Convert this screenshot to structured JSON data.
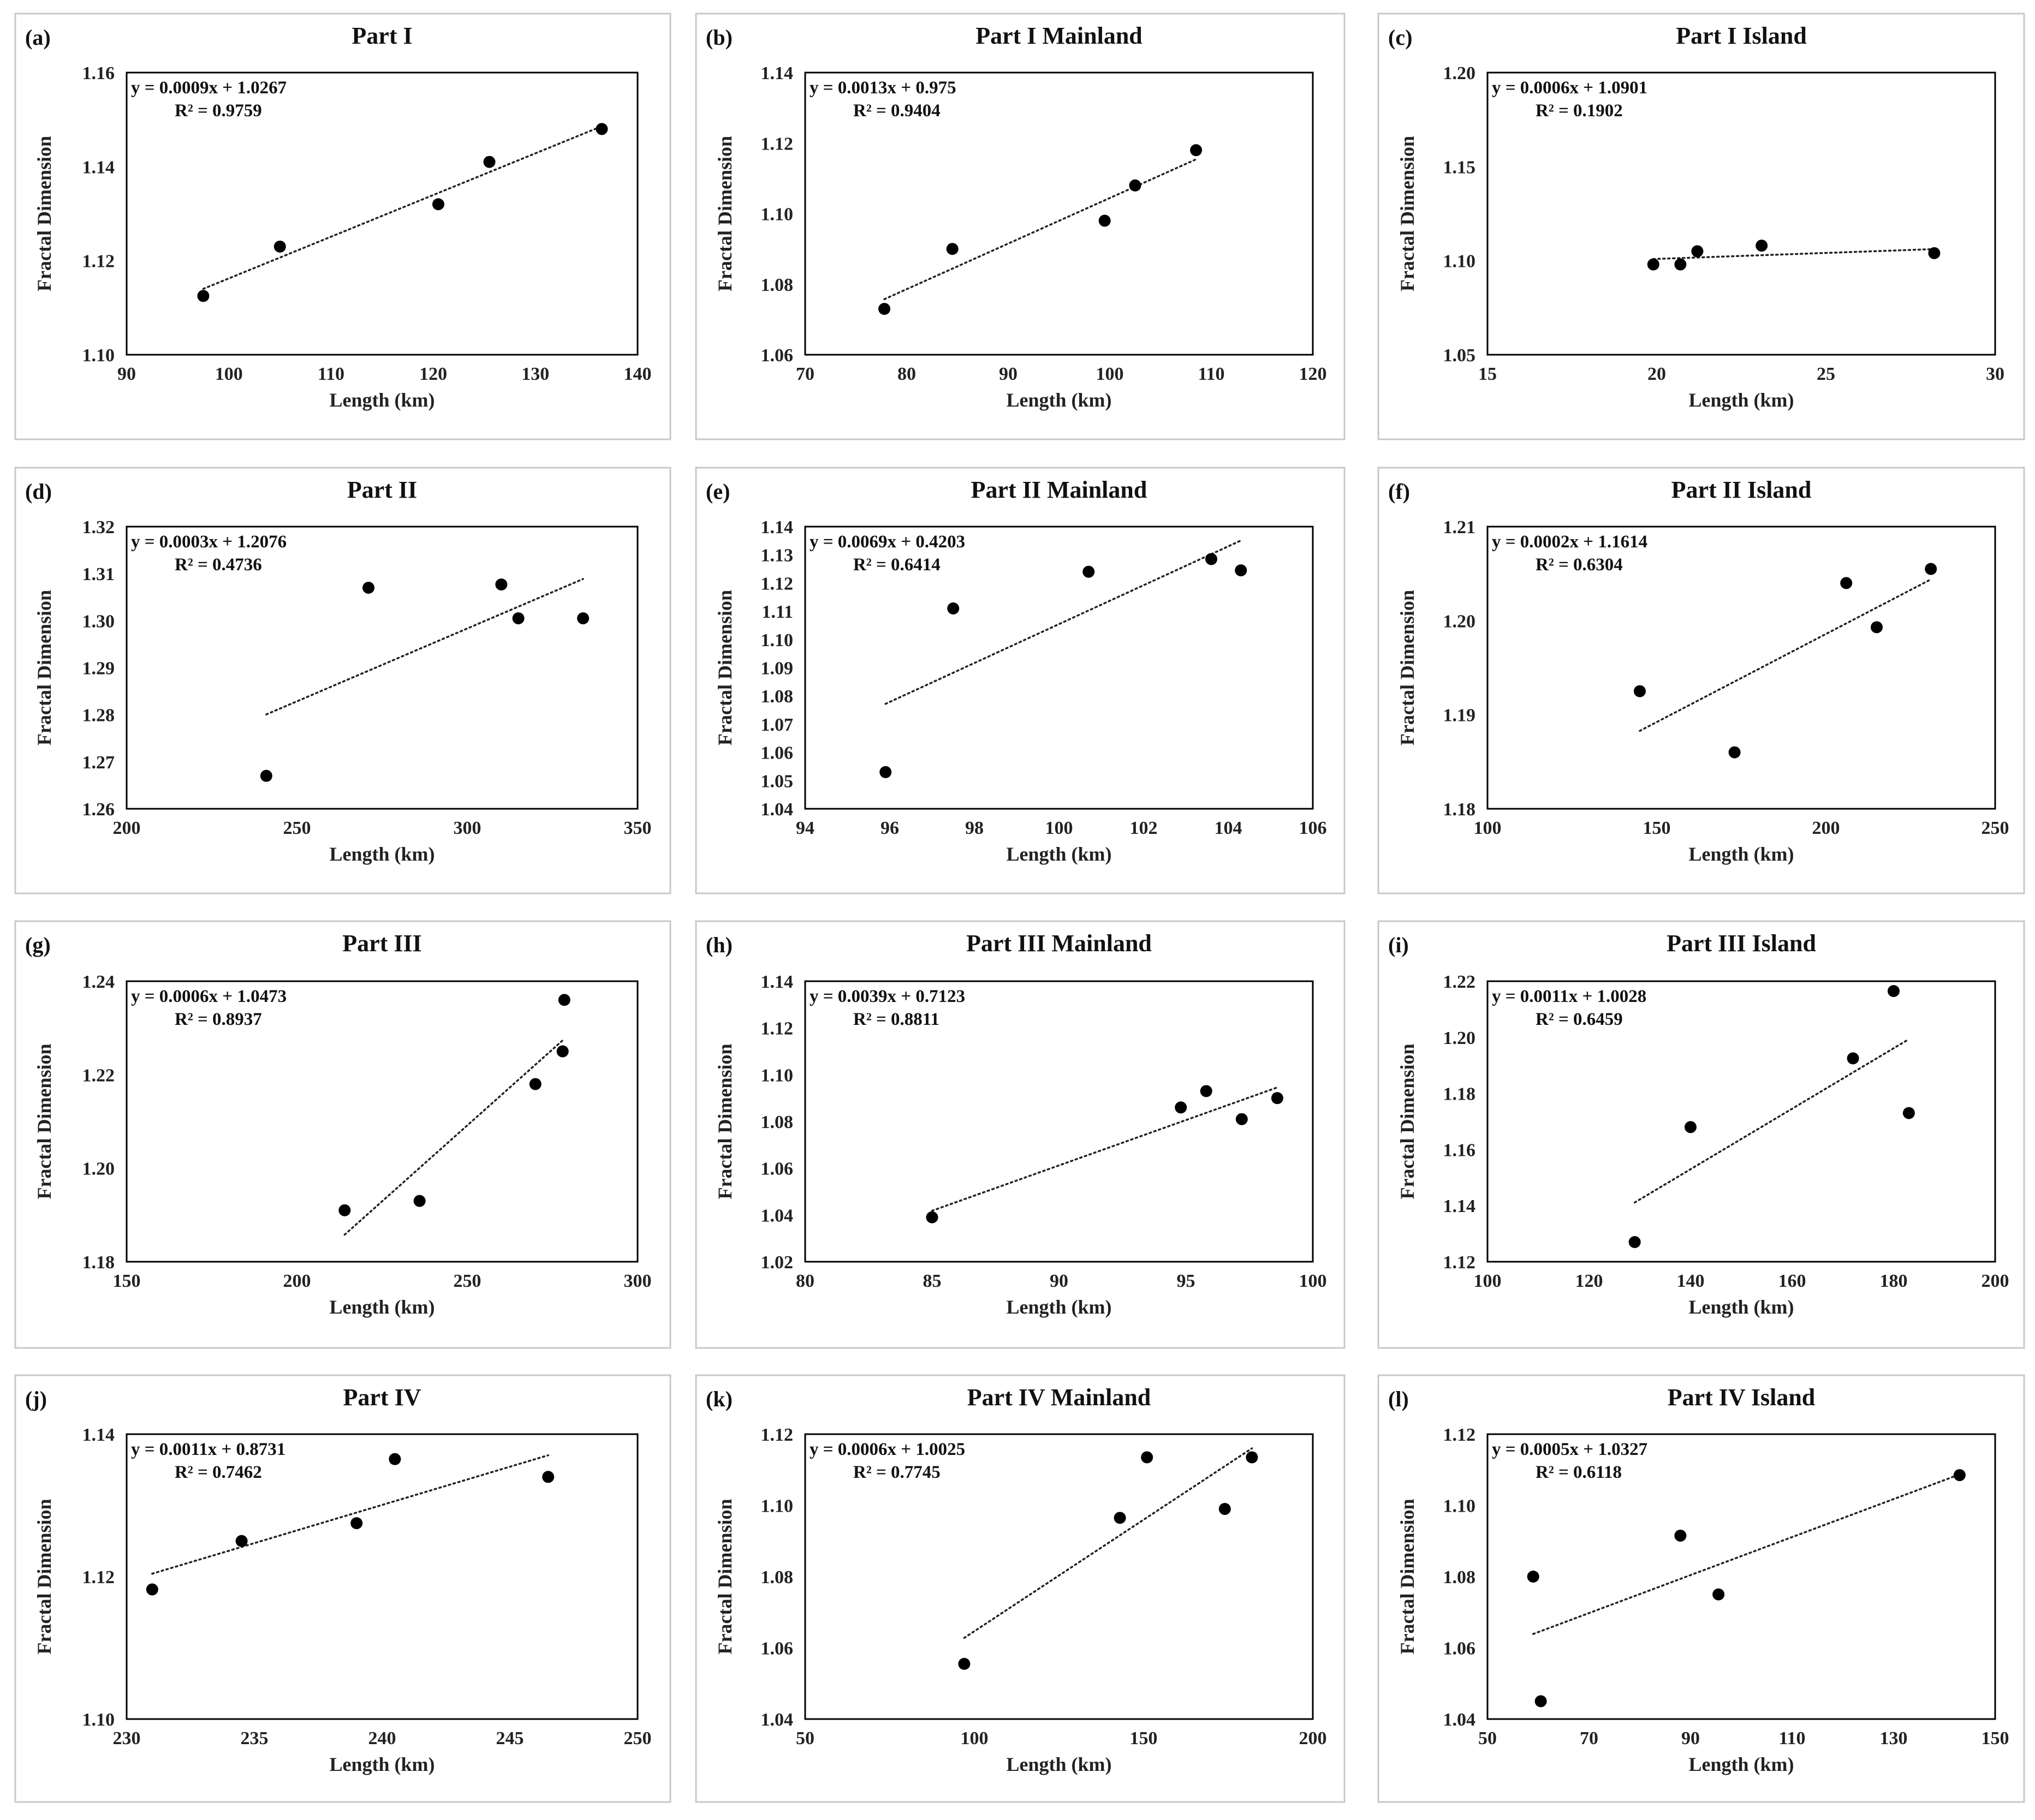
{
  "figure": {
    "background": "#ffffff",
    "point_color": "#000000",
    "panel_border_color": "#c8c8c8"
  },
  "chart_data": [
    {
      "type": "scatter",
      "panel": "(a)",
      "title": "Part I",
      "xlabel": "Length (km)",
      "ylabel": "Fractal Dimension",
      "xlim": [
        90,
        140
      ],
      "xticks": [
        90,
        100,
        110,
        120,
        130,
        140
      ],
      "ylim": [
        1.1,
        1.16
      ],
      "yticks": [
        1.1,
        1.12,
        1.14,
        1.16
      ],
      "ydecimals": 2,
      "points": [
        [
          97.5,
          1.1125
        ],
        [
          105,
          1.123
        ],
        [
          120.5,
          1.132
        ],
        [
          125.5,
          1.141
        ],
        [
          136.5,
          1.148
        ]
      ],
      "trend_x": [
        97.5,
        136.5
      ],
      "equation": "y = 0.0009x + 1.0267",
      "r2": "R² = 0.9759"
    },
    {
      "type": "scatter",
      "panel": "(b)",
      "title": "Part I Mainland",
      "xlabel": "Length (km)",
      "ylabel": "Fractal Dimension",
      "xlim": [
        70,
        120
      ],
      "xticks": [
        70,
        80,
        90,
        100,
        110,
        120
      ],
      "ylim": [
        1.06,
        1.14
      ],
      "yticks": [
        1.06,
        1.08,
        1.1,
        1.12,
        1.14
      ],
      "ydecimals": 2,
      "points": [
        [
          77.8,
          1.073
        ],
        [
          84.5,
          1.09
        ],
        [
          99.5,
          1.098
        ],
        [
          102.5,
          1.108
        ],
        [
          108.5,
          1.118
        ]
      ],
      "trend_x": [
        77.8,
        108.5
      ],
      "equation": "y = 0.0013x + 0.975",
      "r2": "R² = 0.9404"
    },
    {
      "type": "scatter",
      "panel": "(c)",
      "title": "Part I Island",
      "xlabel": "Length (km)",
      "ylabel": "Fractal Dimension",
      "xlim": [
        15,
        30
      ],
      "xticks": [
        15,
        20,
        25,
        30
      ],
      "ylim": [
        1.05,
        1.2
      ],
      "yticks": [
        1.05,
        1.1,
        1.15,
        1.2
      ],
      "ydecimals": 2,
      "points": [
        [
          19.9,
          1.098
        ],
        [
          20.7,
          1.098
        ],
        [
          21.2,
          1.105
        ],
        [
          23.1,
          1.108
        ],
        [
          28.2,
          1.104
        ]
      ],
      "trend_x": [
        19.9,
        28.2
      ],
      "equation": "y = 0.0006x + 1.0901",
      "r2": "R² = 0.1902"
    },
    {
      "type": "scatter",
      "panel": "(d)",
      "title": "Part II",
      "xlabel": "Length (km)",
      "ylabel": "Fractal Dimension",
      "xlim": [
        200,
        350
      ],
      "xticks": [
        200,
        250,
        300,
        350
      ],
      "ylim": [
        1.26,
        1.32
      ],
      "yticks": [
        1.26,
        1.27,
        1.28,
        1.29,
        1.3,
        1.31,
        1.32
      ],
      "ydecimals": 2,
      "points": [
        [
          241,
          1.267
        ],
        [
          271,
          1.307
        ],
        [
          310,
          1.3077
        ],
        [
          315,
          1.3005
        ],
        [
          334,
          1.3005
        ]
      ],
      "trend_x": [
        241,
        334
      ],
      "equation": "y = 0.0003x + 1.2076",
      "r2": "R² = 0.4736"
    },
    {
      "type": "scatter",
      "panel": "(e)",
      "title": "Part II Mainland",
      "xlabel": "Length (km)",
      "ylabel": "Fractal Dimension",
      "xlim": [
        94,
        106
      ],
      "xticks": [
        94,
        96,
        98,
        100,
        102,
        104,
        106
      ],
      "ylim": [
        1.04,
        1.14
      ],
      "yticks": [
        1.04,
        1.05,
        1.06,
        1.07,
        1.08,
        1.09,
        1.1,
        1.11,
        1.12,
        1.13,
        1.14
      ],
      "ydecimals": 2,
      "points": [
        [
          95.9,
          1.053
        ],
        [
          97.5,
          1.111
        ],
        [
          100.7,
          1.124
        ],
        [
          103.6,
          1.1285
        ],
        [
          104.3,
          1.1245
        ]
      ],
      "trend_x": [
        95.9,
        104.3
      ],
      "equation": "y = 0.0069x + 0.4203",
      "r2": "R² = 0.6414"
    },
    {
      "type": "scatter",
      "panel": "(f)",
      "title": "Part II Island",
      "xlabel": "Length (km)",
      "ylabel": "Fractal Dimension",
      "xlim": [
        100,
        250
      ],
      "xticks": [
        100,
        150,
        200,
        250
      ],
      "ylim": [
        1.18,
        1.21
      ],
      "yticks": [
        1.18,
        1.19,
        1.2,
        1.21
      ],
      "ydecimals": 2,
      "points": [
        [
          145,
          1.1925
        ],
        [
          173,
          1.186
        ],
        [
          206,
          1.204
        ],
        [
          215,
          1.1993
        ],
        [
          231,
          1.2055
        ]
      ],
      "trend_x": [
        145,
        231
      ],
      "equation": "y = 0.0002x + 1.1614",
      "r2": "R² = 0.6304"
    },
    {
      "type": "scatter",
      "panel": "(g)",
      "title": "Part III",
      "xlabel": "Length (km)",
      "ylabel": "Fractal Dimension",
      "xlim": [
        150,
        300
      ],
      "xticks": [
        150,
        200,
        250,
        300
      ],
      "ylim": [
        1.18,
        1.24
      ],
      "yticks": [
        1.18,
        1.2,
        1.22,
        1.24
      ],
      "ydecimals": 2,
      "points": [
        [
          214,
          1.191
        ],
        [
          236,
          1.193
        ],
        [
          270,
          1.218
        ],
        [
          278,
          1.225
        ],
        [
          278.5,
          1.236
        ]
      ],
      "trend_x": [
        214,
        278.5
      ],
      "equation": "y = 0.0006x + 1.0473",
      "r2": "R² = 0.8937"
    },
    {
      "type": "scatter",
      "panel": "(h)",
      "title": "Part III Mainland",
      "xlabel": "Length (km)",
      "ylabel": "Fractal Dimension",
      "xlim": [
        80,
        100
      ],
      "xticks": [
        80,
        85,
        90,
        95,
        100
      ],
      "ylim": [
        1.02,
        1.14
      ],
      "yticks": [
        1.02,
        1.04,
        1.06,
        1.08,
        1.1,
        1.12,
        1.14
      ],
      "ydecimals": 2,
      "points": [
        [
          85,
          1.039
        ],
        [
          94.8,
          1.086
        ],
        [
          95.8,
          1.093
        ],
        [
          97.2,
          1.081
        ],
        [
          98.6,
          1.09
        ]
      ],
      "trend_x": [
        85,
        98.6
      ],
      "equation": "y = 0.0039x + 0.7123",
      "r2": "R² = 0.8811"
    },
    {
      "type": "scatter",
      "panel": "(i)",
      "title": "Part III Island",
      "xlabel": "Length (km)",
      "ylabel": "Fractal Dimension",
      "xlim": [
        100,
        200
      ],
      "xticks": [
        100,
        120,
        140,
        160,
        180,
        200
      ],
      "ylim": [
        1.12,
        1.22
      ],
      "yticks": [
        1.12,
        1.14,
        1.16,
        1.18,
        1.2,
        1.22
      ],
      "ydecimals": 2,
      "points": [
        [
          129,
          1.127
        ],
        [
          140,
          1.168
        ],
        [
          172,
          1.1925
        ],
        [
          180,
          1.2165
        ],
        [
          183,
          1.173
        ]
      ],
      "trend_x": [
        129,
        183
      ],
      "equation": "y = 0.0011x + 1.0028",
      "r2": "R² = 0.6459"
    },
    {
      "type": "scatter",
      "panel": "(j)",
      "title": "Part IV",
      "xlabel": "Length (km)",
      "ylabel": "Fractal Dimension",
      "xlim": [
        230,
        250
      ],
      "xticks": [
        230,
        235,
        240,
        245,
        250
      ],
      "ylim": [
        1.1,
        1.14
      ],
      "yticks": [
        1.1,
        1.12,
        1.14
      ],
      "ydecimals": 2,
      "points": [
        [
          231,
          1.1182
        ],
        [
          234.5,
          1.125
        ],
        [
          239,
          1.1275
        ],
        [
          240.5,
          1.1365
        ],
        [
          246.5,
          1.134
        ]
      ],
      "trend_x": [
        231,
        246.5
      ],
      "equation": "y = 0.0011x + 0.8731",
      "r2": "R² = 0.7462"
    },
    {
      "type": "scatter",
      "panel": "(k)",
      "title": "Part IV Mainland",
      "xlabel": "Length (km)",
      "ylabel": "Fractal Dimension",
      "xlim": [
        50,
        200
      ],
      "xticks": [
        50,
        100,
        150,
        200
      ],
      "ylim": [
        1.04,
        1.12
      ],
      "yticks": [
        1.04,
        1.06,
        1.08,
        1.1,
        1.12
      ],
      "ydecimals": 2,
      "points": [
        [
          97,
          1.0555
        ],
        [
          143,
          1.0965
        ],
        [
          151,
          1.1135
        ],
        [
          174,
          1.099
        ],
        [
          182,
          1.1135
        ]
      ],
      "trend_x": [
        97,
        182
      ],
      "equation": "y = 0.0006x + 1.0025",
      "r2": "R² = 0.7745"
    },
    {
      "type": "scatter",
      "panel": "(l)",
      "title": "Part IV Island",
      "xlabel": "Length (km)",
      "ylabel": "Fractal Dimension",
      "xlim": [
        50,
        150
      ],
      "xticks": [
        50,
        70,
        90,
        110,
        130,
        150
      ],
      "ylim": [
        1.04,
        1.12
      ],
      "yticks": [
        1.04,
        1.06,
        1.08,
        1.1,
        1.12
      ],
      "ydecimals": 2,
      "points": [
        [
          59,
          1.08
        ],
        [
          60.5,
          1.045
        ],
        [
          88,
          1.0915
        ],
        [
          95.5,
          1.075
        ],
        [
          143,
          1.1085
        ]
      ],
      "trend_x": [
        59,
        143
      ],
      "equation": "y = 0.0005x + 1.0327",
      "r2": "R² = 0.6118"
    }
  ]
}
